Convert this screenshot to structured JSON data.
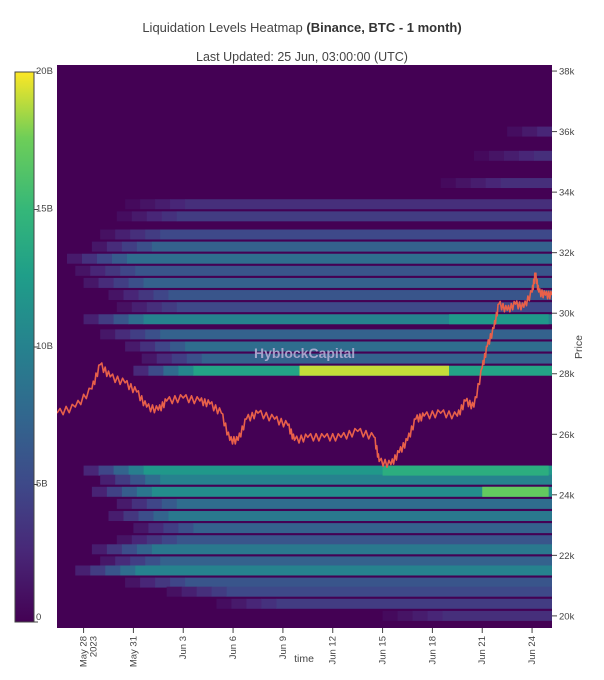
{
  "title_prefix": "Liquidation Levels Heatmap ",
  "title_bold": "(Binance, BTC - 1 month)",
  "subtitle": "Last Updated: 25 Jun, 03:00:00 (UTC)",
  "watermark": "HyblockCapital",
  "chart_data": {
    "type": "heatmap",
    "xlabel": "time",
    "ylabel": "Price",
    "x_ticks": [
      {
        "label": "May 28",
        "sub": "2023",
        "day": 0
      },
      {
        "label": "May 31",
        "sub": "",
        "day": 3
      },
      {
        "label": "Jun 3",
        "sub": "",
        "day": 6
      },
      {
        "label": "Jun 6",
        "sub": "",
        "day": 9
      },
      {
        "label": "Jun 9",
        "sub": "",
        "day": 12
      },
      {
        "label": "Jun 12",
        "sub": "",
        "day": 15
      },
      {
        "label": "Jun 15",
        "sub": "",
        "day": 18
      },
      {
        "label": "Jun 18",
        "sub": "",
        "day": 21
      },
      {
        "label": "Jun 21",
        "sub": "",
        "day": 24
      },
      {
        "label": "Jun 24",
        "sub": "",
        "day": 27
      }
    ],
    "x_range_days": [
      -1.6,
      28.2
    ],
    "y_ticks": [
      {
        "label": "20k",
        "value": 20000
      },
      {
        "label": "22k",
        "value": 22000
      },
      {
        "label": "24k",
        "value": 24000
      },
      {
        "label": "26k",
        "value": 26000
      },
      {
        "label": "28k",
        "value": 28000
      },
      {
        "label": "30k",
        "value": 30000
      },
      {
        "label": "32k",
        "value": 32000
      },
      {
        "label": "34k",
        "value": 34000
      },
      {
        "label": "36k",
        "value": 36000
      },
      {
        "label": "38k",
        "value": 38000
      }
    ],
    "ylim": [
      19600,
      38200
    ],
    "colorbar": {
      "ticks": [
        {
          "label": "0",
          "value": 0
        },
        {
          "label": "5B",
          "value": 5
        },
        {
          "label": "10B",
          "value": 10
        },
        {
          "label": "15B",
          "value": 15
        },
        {
          "label": "20B",
          "value": 20
        }
      ],
      "range": [
        0,
        20
      ],
      "scale": "viridis"
    },
    "liquidation_bands": [
      {
        "price": 36000,
        "start_day": 25.5,
        "value": 4
      },
      {
        "price": 35200,
        "start_day": 23.5,
        "value": 3
      },
      {
        "price": 34300,
        "start_day": 21.5,
        "value": 3
      },
      {
        "price": 33600,
        "start_day": 2.5,
        "value": 3
      },
      {
        "price": 33200,
        "start_day": 2.0,
        "value": 4
      },
      {
        "price": 32600,
        "start_day": 1.0,
        "value": 5
      },
      {
        "price": 32200,
        "start_day": 0.5,
        "value": 7
      },
      {
        "price": 31800,
        "start_day": -1.0,
        "value": 8
      },
      {
        "price": 31400,
        "start_day": -0.5,
        "value": 6
      },
      {
        "price": 31000,
        "start_day": 0.0,
        "value": 7
      },
      {
        "price": 30600,
        "start_day": 1.5,
        "value": 6
      },
      {
        "price": 30200,
        "start_day": 2.0,
        "value": 5
      },
      {
        "price": 29800,
        "start_day": 0.0,
        "value": 10
      },
      {
        "price": 29300,
        "start_day": 1.0,
        "value": 7
      },
      {
        "price": 28900,
        "start_day": 2.5,
        "value": 8
      },
      {
        "price": 28500,
        "start_day": 3.5,
        "value": 7
      },
      {
        "price": 28100,
        "start_day": 3.0,
        "value": 13
      },
      {
        "price": 24800,
        "start_day": 0.0,
        "value": 12
      },
      {
        "price": 24500,
        "start_day": 1.0,
        "value": 10
      },
      {
        "price": 24100,
        "start_day": 0.5,
        "value": 11
      },
      {
        "price": 23700,
        "start_day": 2.0,
        "value": 8
      },
      {
        "price": 23300,
        "start_day": 1.5,
        "value": 9
      },
      {
        "price": 22900,
        "start_day": 3.0,
        "value": 7
      },
      {
        "price": 22500,
        "start_day": 2.0,
        "value": 6
      },
      {
        "price": 22200,
        "start_day": 0.5,
        "value": 9
      },
      {
        "price": 21800,
        "start_day": 1.0,
        "value": 7
      },
      {
        "price": 21500,
        "start_day": -0.5,
        "value": 10
      },
      {
        "price": 21100,
        "start_day": 2.5,
        "value": 6
      },
      {
        "price": 20800,
        "start_day": 5.0,
        "value": 5
      },
      {
        "price": 20400,
        "start_day": 8.0,
        "value": 4
      },
      {
        "price": 20000,
        "start_day": 18.0,
        "value": 3
      }
    ],
    "hotspots": [
      {
        "price": 28100,
        "from_day": 13.0,
        "to_day": 22.0,
        "value": 19
      },
      {
        "price": 24800,
        "from_day": 18.0,
        "to_day": 28.0,
        "value": 14
      },
      {
        "price": 24100,
        "from_day": 24.0,
        "to_day": 28.0,
        "value": 17
      },
      {
        "price": 29800,
        "from_day": 22.0,
        "to_day": 28.0,
        "value": 12
      }
    ],
    "price_series": {
      "name": "",
      "color": "#e8604a",
      "points": [
        [
          -1.6,
          26700
        ],
        [
          -0.5,
          26900
        ],
        [
          0.5,
          27500
        ],
        [
          1.0,
          28300
        ],
        [
          1.6,
          27900
        ],
        [
          2.5,
          27700
        ],
        [
          3.2,
          27400
        ],
        [
          3.8,
          26900
        ],
        [
          4.5,
          26800
        ],
        [
          5.0,
          27100
        ],
        [
          6.0,
          27200
        ],
        [
          7.0,
          27100
        ],
        [
          7.6,
          27000
        ],
        [
          8.3,
          26700
        ],
        [
          8.8,
          25800
        ],
        [
          9.3,
          25800
        ],
        [
          9.8,
          26500
        ],
        [
          10.5,
          26700
        ],
        [
          11.5,
          26500
        ],
        [
          12.3,
          26300
        ],
        [
          12.7,
          25800
        ],
        [
          13.5,
          25900
        ],
        [
          14.5,
          25900
        ],
        [
          15.5,
          25900
        ],
        [
          16.5,
          26100
        ],
        [
          17.5,
          25900
        ],
        [
          17.8,
          25100
        ],
        [
          18.5,
          25000
        ],
        [
          19.0,
          25400
        ],
        [
          19.5,
          25800
        ],
        [
          20.0,
          26500
        ],
        [
          20.5,
          26600
        ],
        [
          21.5,
          26700
        ],
        [
          22.5,
          26600
        ],
        [
          23.0,
          27100
        ],
        [
          23.5,
          26900
        ],
        [
          24.0,
          28200
        ],
        [
          24.3,
          28900
        ],
        [
          24.7,
          29500
        ],
        [
          25.0,
          30300
        ],
        [
          25.5,
          30100
        ],
        [
          26.0,
          30300
        ],
        [
          26.5,
          30200
        ],
        [
          27.0,
          30700
        ],
        [
          27.2,
          31300
        ],
        [
          27.4,
          30700
        ],
        [
          27.8,
          30600
        ],
        [
          28.2,
          30600
        ]
      ]
    }
  }
}
